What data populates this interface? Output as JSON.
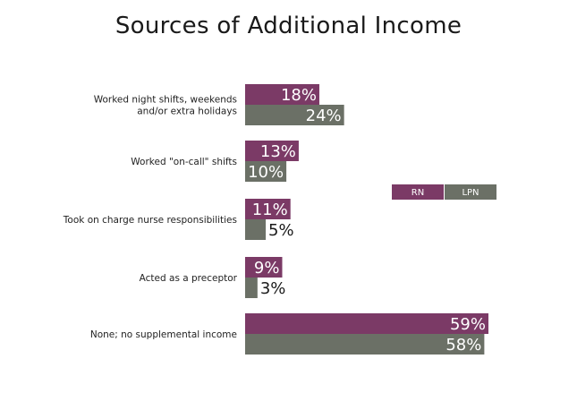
{
  "chart_data": {
    "type": "bar",
    "orientation": "horizontal",
    "title": "Sources of Additional Income",
    "categories": [
      [
        "Worked night shifts, weekends",
        "and/or extra holidays"
      ],
      [
        "Worked \"on-call\" shifts"
      ],
      [
        "Took on charge nurse responsibilities"
      ],
      [
        "Acted as a preceptor"
      ],
      [
        "None; no supplemental income"
      ]
    ],
    "series": [
      {
        "name": "RN",
        "color": "#7b3a66",
        "values": [
          18,
          13,
          11,
          9,
          59
        ]
      },
      {
        "name": "LPN",
        "color": "#6b7066",
        "values": [
          24,
          10,
          5,
          3,
          58
        ]
      }
    ],
    "value_suffix": "%",
    "xlim": [
      0,
      59
    ],
    "grid": false,
    "legend": "right"
  }
}
